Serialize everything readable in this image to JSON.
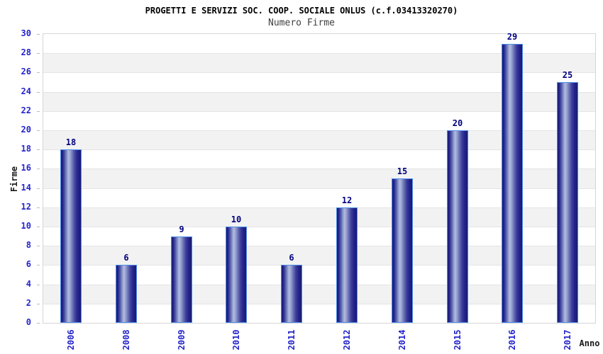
{
  "header": {
    "title": "PROGETTI E SERVIZI SOC. COOP. SOCIALE ONLUS (c.f.03413320270)",
    "subtitle": "Numero Firme"
  },
  "chart_data": {
    "type": "bar",
    "title": "PROGETTI E SERVIZI SOC. COOP. SOCIALE ONLUS (c.f.03413320270)",
    "subtitle": "Numero Firme",
    "categories": [
      "2006",
      "2008",
      "2009",
      "2010",
      "2011",
      "2012",
      "2014",
      "2015",
      "2016",
      "2017"
    ],
    "values": [
      18,
      6,
      9,
      10,
      6,
      12,
      15,
      20,
      29,
      25
    ],
    "xlabel": "Anno",
    "ylabel": "Firme",
    "ylim": [
      0,
      30
    ],
    "ytick_step": 2,
    "yticks": [
      0,
      2,
      4,
      6,
      8,
      10,
      12,
      14,
      16,
      18,
      20,
      22,
      24,
      26,
      28,
      30
    ],
    "grid": "horizontal-bands-alternating",
    "legend": "none",
    "colors": {
      "bar_dark": "#191970",
      "bar_light": "#b2bbe0",
      "bar_border": "#4f8de8",
      "value_label": "#000080",
      "tick_label": "#2424cc",
      "band_gray": "#f2f2f2",
      "band_white": "#ffffff",
      "gridline": "#e4e4e4",
      "plot_border": "#d6d6d6",
      "title": "#000000",
      "subtitle": "#404040",
      "axis_title": "#1a1a1a"
    }
  }
}
